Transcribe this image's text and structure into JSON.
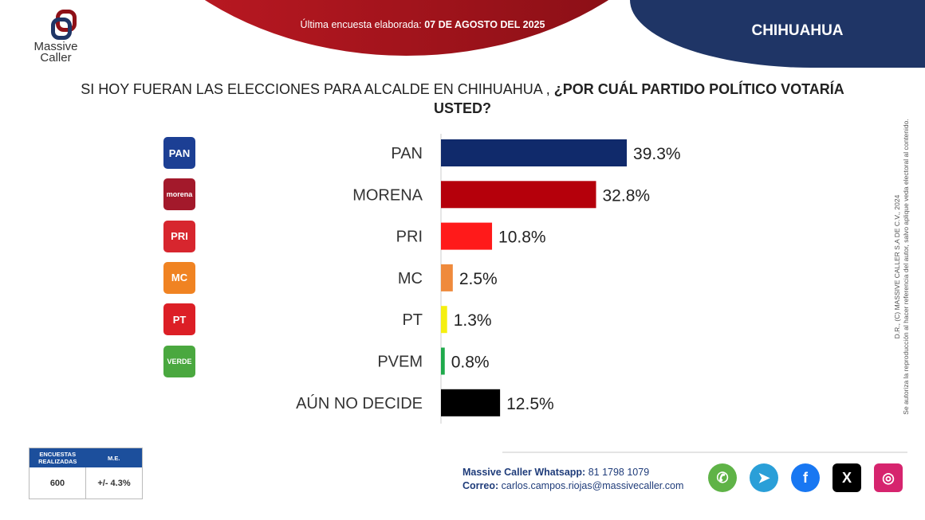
{
  "header": {
    "date_prefix": "Última encuesta elaborada:",
    "date": "07 DE AGOSTO DEL 2025",
    "state": "CHIHUAHUA",
    "logo_line1": "Massive",
    "logo_line2": "Caller"
  },
  "question": {
    "normal": "SI HOY FUERAN LAS ELECCIONES PARA ALCALDE EN CHIHUAHUA ,",
    "bold": "¿POR CUÁL PARTIDO POLÍTICO VOTARÍA USTED?"
  },
  "chart_data": {
    "type": "bar",
    "orientation": "horizontal",
    "categories": [
      "PAN",
      "MORENA",
      "PRI",
      "MC",
      "PT",
      "PVEM",
      "AÚN NO DECIDE"
    ],
    "values": [
      39.3,
      32.8,
      10.8,
      2.5,
      1.3,
      0.8,
      12.5
    ],
    "labels": [
      "39.3%",
      "32.8%",
      "10.8%",
      "2.5%",
      "1.3%",
      "0.8%",
      "12.5%"
    ],
    "colors": [
      "#102a6b",
      "#b5000b",
      "#ff1a1a",
      "#ef8a3c",
      "#f5ef10",
      "#1faa4b",
      "#000000"
    ],
    "grid": false
  },
  "party_logos": [
    {
      "text": "PAN",
      "color": "#1c3f94"
    },
    {
      "text": "morena",
      "color": "#a3192b"
    },
    {
      "text": "PRI",
      "color": "#d7262e"
    },
    {
      "text": "MC",
      "color": "#f08322"
    },
    {
      "text": "PT",
      "color": "#dc1f26"
    },
    {
      "text": "VERDE",
      "color": "#4aa83f"
    }
  ],
  "rights": {
    "line1": "D.R., (C) MASSIVE CALLER S.A DE C.V., 2024",
    "line2": "Se autoriza la reproducción al hacer referencia del autor, salvo aplique veda electoral al contenido."
  },
  "stats": {
    "h1": "ENCUESTAS REALIZADAS",
    "h2": "M.E.",
    "v1": "600",
    "v2": "+/- 4.3%"
  },
  "contact": {
    "wa_label": "Massive Caller Whatsapp:",
    "wa": "81 1798 1079",
    "mail_label": "Correo:",
    "mail": "carlos.campos.riojas@massivecaller.com"
  },
  "social": [
    {
      "icon": "whatsapp-icon",
      "color": "#5fb347"
    },
    {
      "icon": "telegram-icon",
      "color": "#2a9fd8"
    },
    {
      "icon": "facebook-icon",
      "color": "#1877f2"
    },
    {
      "icon": "x-icon",
      "color": "#000000"
    },
    {
      "icon": "instagram-icon",
      "color": "#d6246e"
    }
  ]
}
